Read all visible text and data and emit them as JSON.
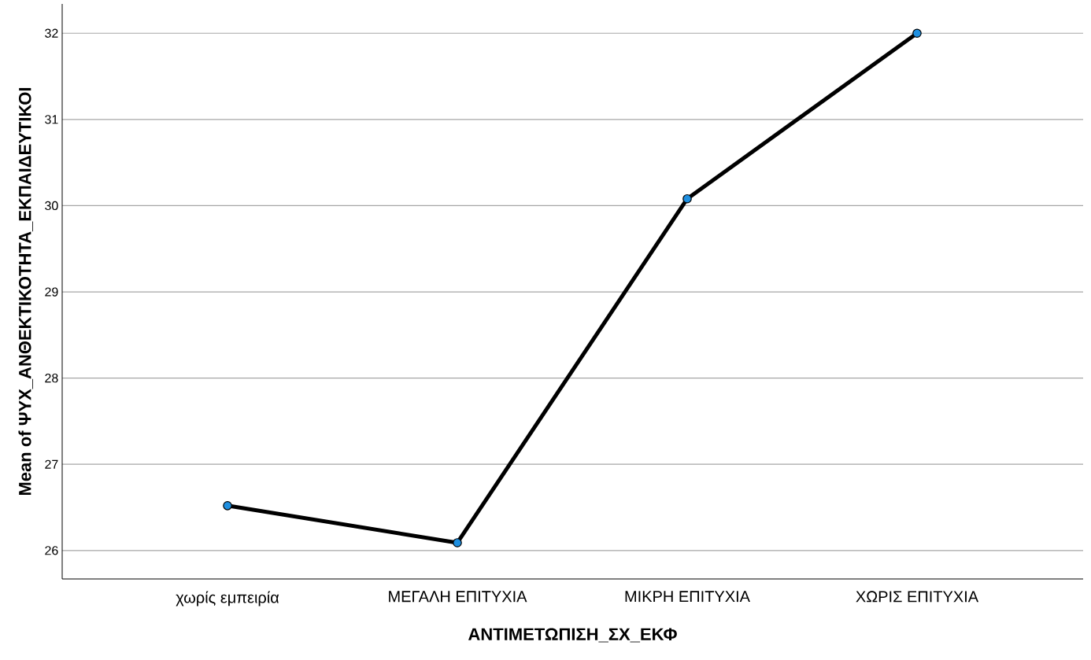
{
  "chart_data": {
    "type": "line",
    "xlabel": "ΑΝΤΙΜΕΤΩΠΙΣΗ_ΣΧ_ΕΚΦ",
    "ylabel": "Mean of ΨΥΧ_ΑΝΘΕΚΤΙΚΟΤΗΤΑ_ΕΚΠΑΙΔΕΥΤΙΚΟΙ",
    "categories": [
      "χωρίς εμπειρία",
      "ΜΕΓΑΛΗ ΕΠΙΤΥΧΙΑ",
      "ΜΙΚΡΗ ΕΠΙΤΥΧΙΑ",
      "ΧΩΡΙΣ ΕΠΙΤΥΧΙΑ"
    ],
    "series": [
      {
        "color": "#000000",
        "colors": [
          "#1e8fe0",
          "#1e8fe0",
          "#1e8fe0",
          "#1e8fe0"
        ],
        "values": [
          26.52,
          26.09,
          30.08,
          32.0
        ]
      }
    ],
    "ylim": [
      25.67,
      32.34
    ],
    "yticks": [
      26,
      27,
      28,
      29,
      30,
      31,
      32
    ],
    "grid": "y",
    "marker": "circle",
    "line_style": "solid"
  }
}
